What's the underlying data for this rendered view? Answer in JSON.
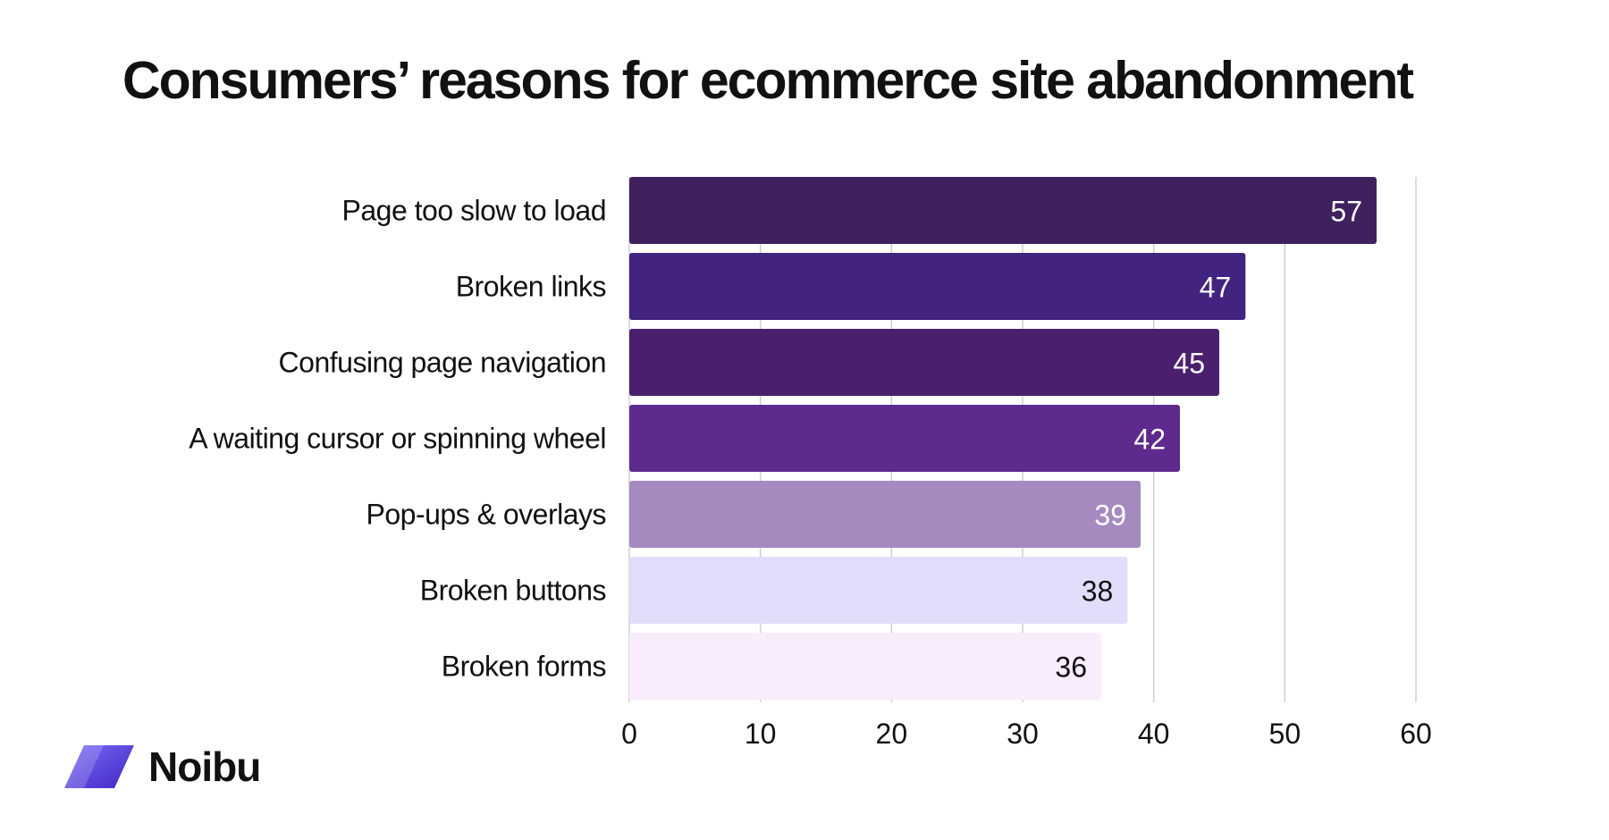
{
  "chart_data": {
    "type": "bar",
    "orientation": "horizontal",
    "title": "Consumers’ reasons for ecommerce site abandonment",
    "categories": [
      "Page too slow to load",
      "Broken links",
      "Confusing page navigation",
      "A waiting cursor or spinning wheel",
      "Pop-ups & overlays",
      "Broken buttons",
      "Broken forms"
    ],
    "values": [
      57,
      47,
      45,
      42,
      39,
      38,
      36
    ],
    "bar_colors": [
      "#3f215e",
      "#42237f",
      "#4a206e",
      "#5e2a8d",
      "#a58ac0",
      "#e1ddfb",
      "#f9ecfc"
    ],
    "label_colors": [
      "#ffffff",
      "#ffffff",
      "#ffffff",
      "#ffffff",
      "#ffffff",
      "#111111",
      "#111111"
    ],
    "xlim": [
      0,
      60
    ],
    "xticks": [
      0,
      10,
      20,
      30,
      40,
      50,
      60
    ],
    "grid": true,
    "xlabel": "",
    "ylabel": ""
  },
  "brand": {
    "name": "Noibu",
    "logo_icon": "parallelogram-logo-icon",
    "logo_color_start": "#7b6cf6",
    "logo_color_end": "#3f26c6"
  }
}
